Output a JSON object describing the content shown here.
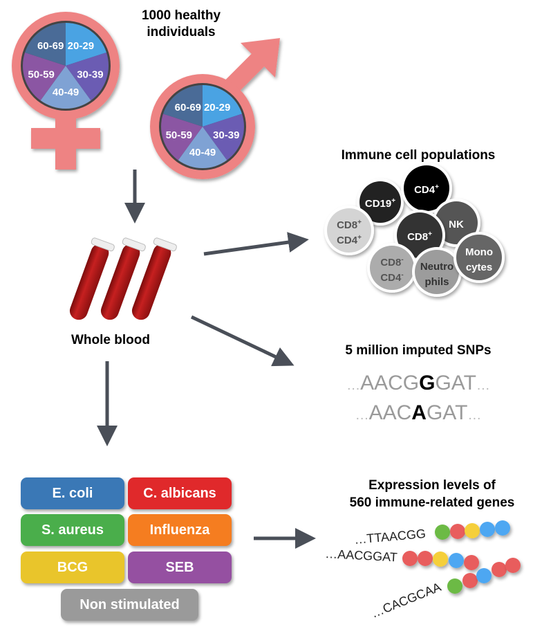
{
  "cohort": {
    "title_line1": "1000 healthy",
    "title_line2": "individuals",
    "age_groups": [
      "20-29",
      "30-39",
      "40-49",
      "50-59",
      "60-69"
    ],
    "age_colors": [
      "#4aa3e3",
      "#6b5cb3",
      "#7fa2d4",
      "#8b56a3",
      "#4a6b97"
    ],
    "symbol_color": "#ee8383"
  },
  "blood": {
    "label": "Whole blood"
  },
  "immune": {
    "title": "Immune cell populations",
    "cells": [
      {
        "l1": "CD19",
        "s1": "+",
        "l2": "",
        "s2": "",
        "color": "#222222",
        "text": "#ffffff"
      },
      {
        "l1": "CD4",
        "s1": "+",
        "l2": "",
        "s2": "",
        "color": "#000000",
        "text": "#ffffff"
      },
      {
        "l1": "NK",
        "s1": "",
        "l2": "",
        "s2": "",
        "color": "#555555",
        "text": "#ffffff"
      },
      {
        "l1": "CD8",
        "s1": "+",
        "l2": "CD4",
        "s2": "+",
        "color": "#d4d4d4",
        "text": "#555555"
      },
      {
        "l1": "CD8",
        "s1": "+",
        "l2": "",
        "s2": "",
        "color": "#333333",
        "text": "#ffffff"
      },
      {
        "l1": "CD8",
        "s1": "-",
        "l2": "CD4",
        "s2": "-",
        "color": "#acacac",
        "text": "#555555"
      },
      {
        "l1": "Neutro",
        "s1": "",
        "l2": "phils",
        "s2": "",
        "color": "#9c9c9c",
        "text": "#333333"
      },
      {
        "l1": "Mono",
        "s1": "",
        "l2": "cytes",
        "s2": "",
        "color": "#666666",
        "text": "#ffffff"
      }
    ]
  },
  "snps": {
    "title": "5 million imputed SNPs",
    "seq1": {
      "pre": "AACG",
      "alt": "G",
      "post": "GAT"
    },
    "seq2": {
      "pre": "AAC",
      "alt": "A",
      "post": "GAT"
    }
  },
  "stimuli": [
    {
      "label": "E. coli",
      "color": "#3a78b6"
    },
    {
      "label": "C. albicans",
      "color": "#e0292b"
    },
    {
      "label": "S. aureus",
      "color": "#4aae4b"
    },
    {
      "label": "Influenza",
      "color": "#f57d20"
    },
    {
      "label": "BCG",
      "color": "#e9c52b"
    },
    {
      "label": "SEB",
      "color": "#9550a1"
    },
    {
      "label": "Non stimulated",
      "color": "#9a9a9a"
    }
  ],
  "expression": {
    "title_line1": "Expression levels of",
    "title_line2": "560 immune-related genes",
    "strands": [
      {
        "seq": "…TTAACGG",
        "beads": [
          "#6cba45",
          "#e85d5d",
          "#f5cf3a",
          "#4ea7f2",
          "#4ea7f2"
        ]
      },
      {
        "seq": "…AACGGAT",
        "beads": [
          "#e85d5d",
          "#e85d5d",
          "#f5cf3a",
          "#4ea7f2",
          "#e85d5d"
        ]
      },
      {
        "seq": "…CACGCAA",
        "beads": [
          "#6cba45",
          "#e85d5d",
          "#4ea7f2",
          "#e85d5d",
          "#e85d5d"
        ]
      }
    ]
  },
  "arrow_color": "#4a4f58"
}
